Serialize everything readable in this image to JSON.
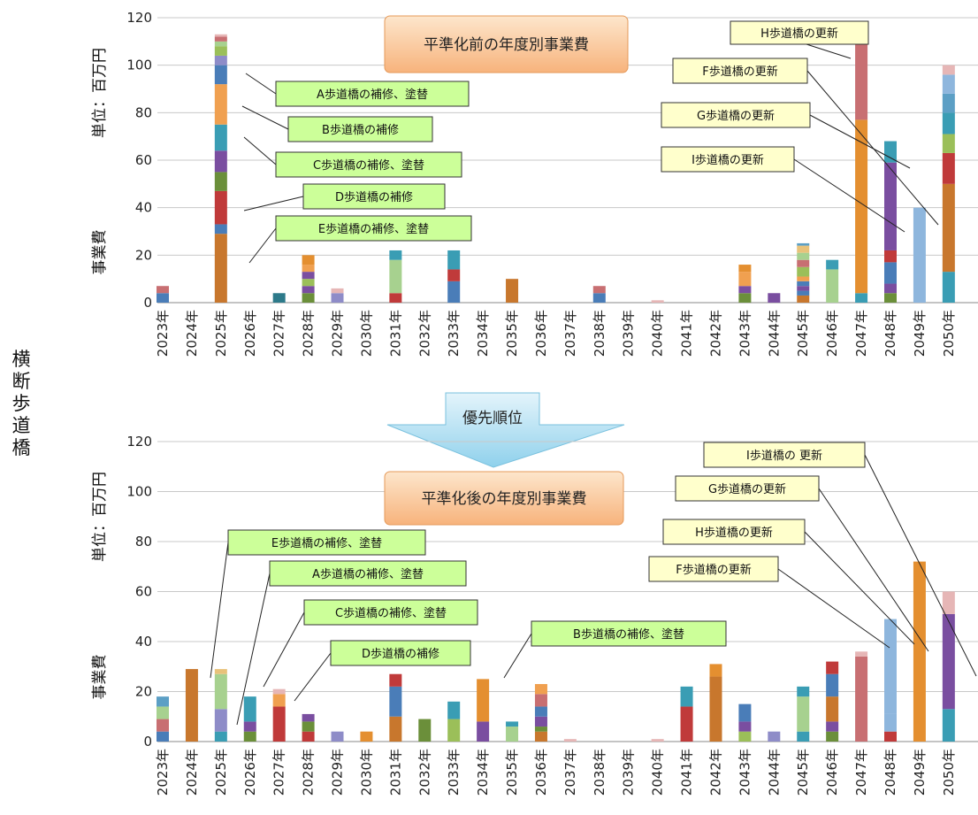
{
  "side_label": "横断歩道橋",
  "priority_arrow": "優先順位",
  "colors": {
    "A": "#8e8cc8",
    "B": "#f0a050",
    "C": "#3a9db4",
    "D": "#c03a3a",
    "E": "#c8772d",
    "F": "#e48f30",
    "G": "#8eb6dd",
    "H": "#c86f72",
    "I": "#7a4ea0",
    "c1": "#4a7db8",
    "c2": "#9bbf59",
    "c3": "#a7d18f",
    "c4": "#2d7a8a",
    "c5": "#e6b6b6",
    "c6": "#6b8f3a",
    "c7": "#e8c27a",
    "c8": "#5c9fc5"
  },
  "chart_data": [
    {
      "type": "bar",
      "stacked": true,
      "title": "平準化前の年度別事業費",
      "ylabel_top": "単位：百万円",
      "ylabel_bottom": "事業費",
      "ylim": [
        0,
        120
      ],
      "yticks": [
        0,
        20,
        40,
        60,
        80,
        100,
        120
      ],
      "grid": true,
      "categories": [
        "2023年",
        "2024年",
        "2025年",
        "2026年",
        "2027年",
        "2028年",
        "2029年",
        "2030年",
        "2031年",
        "2032年",
        "2033年",
        "2034年",
        "2035年",
        "2036年",
        "2037年",
        "2038年",
        "2039年",
        "2040年",
        "2041年",
        "2042年",
        "2043年",
        "2044年",
        "2045年",
        "2046年",
        "2047年",
        "2048年",
        "2049年",
        "2050年"
      ],
      "stacks": [
        [
          {
            "v": 4,
            "c": "c1"
          },
          {
            "v": 3,
            "c": "H"
          }
        ],
        [],
        [
          {
            "v": 29,
            "c": "E"
          },
          {
            "v": 4,
            "c": "c1"
          },
          {
            "v": 14,
            "c": "D"
          },
          {
            "v": 8,
            "c": "c6"
          },
          {
            "v": 9,
            "c": "I"
          },
          {
            "v": 11,
            "c": "C"
          },
          {
            "v": 17,
            "c": "B"
          },
          {
            "v": 8,
            "c": "c1"
          },
          {
            "v": 4,
            "c": "A"
          },
          {
            "v": 4,
            "c": "c2"
          },
          {
            "v": 2,
            "c": "c3"
          },
          {
            "v": 2,
            "c": "H"
          },
          {
            "v": 1,
            "c": "c5"
          }
        ],
        [],
        [
          {
            "v": 4,
            "c": "c4"
          }
        ],
        [
          {
            "v": 4,
            "c": "c6"
          },
          {
            "v": 3,
            "c": "I"
          },
          {
            "v": 3,
            "c": "c2"
          },
          {
            "v": 3,
            "c": "I"
          },
          {
            "v": 3,
            "c": "B"
          },
          {
            "v": 4,
            "c": "F"
          }
        ],
        [
          {
            "v": 4,
            "c": "A"
          },
          {
            "v": 2,
            "c": "c5"
          }
        ],
        [],
        [
          {
            "v": 4,
            "c": "D"
          },
          {
            "v": 14,
            "c": "c3"
          },
          {
            "v": 4,
            "c": "C"
          }
        ],
        [],
        [
          {
            "v": 9,
            "c": "c1"
          },
          {
            "v": 5,
            "c": "D"
          },
          {
            "v": 8,
            "c": "C"
          }
        ],
        [],
        [
          {
            "v": 10,
            "c": "E"
          }
        ],
        [],
        [],
        [
          {
            "v": 4,
            "c": "c1"
          },
          {
            "v": 3,
            "c": "H"
          }
        ],
        [],
        [
          {
            "v": 1,
            "c": "c5"
          }
        ],
        [],
        [],
        [
          {
            "v": 4,
            "c": "c6"
          },
          {
            "v": 3,
            "c": "I"
          },
          {
            "v": 6,
            "c": "B"
          },
          {
            "v": 3,
            "c": "F"
          }
        ],
        [
          {
            "v": 4,
            "c": "I"
          }
        ],
        [
          {
            "v": 3,
            "c": "E"
          },
          {
            "v": 2,
            "c": "c1"
          },
          {
            "v": 2,
            "c": "I"
          },
          {
            "v": 2,
            "c": "c1"
          },
          {
            "v": 2,
            "c": "B"
          },
          {
            "v": 4,
            "c": "c2"
          },
          {
            "v": 3,
            "c": "H"
          },
          {
            "v": 3,
            "c": "c3"
          },
          {
            "v": 3,
            "c": "c7"
          },
          {
            "v": 1,
            "c": "c8"
          }
        ],
        [
          {
            "v": 14,
            "c": "c3"
          },
          {
            "v": 4,
            "c": "C"
          }
        ],
        [
          {
            "v": 4,
            "c": "C"
          },
          {
            "v": 73,
            "c": "F"
          },
          {
            "v": 34,
            "c": "H"
          }
        ],
        [
          {
            "v": 4,
            "c": "c6"
          },
          {
            "v": 4,
            "c": "I"
          },
          {
            "v": 9,
            "c": "c1"
          },
          {
            "v": 5,
            "c": "D"
          },
          {
            "v": 37,
            "c": "I"
          },
          {
            "v": 9,
            "c": "C"
          }
        ],
        [
          {
            "v": 40,
            "c": "G"
          }
        ],
        [
          {
            "v": 13,
            "c": "C"
          },
          {
            "v": 37,
            "c": "E"
          },
          {
            "v": 13,
            "c": "D"
          },
          {
            "v": 8,
            "c": "c2"
          },
          {
            "v": 9,
            "c": "C"
          },
          {
            "v": 8,
            "c": "c8"
          },
          {
            "v": 8,
            "c": "G"
          },
          {
            "v": 4,
            "c": "c5"
          }
        ]
      ],
      "annotations": [
        {
          "text": "A歩道橋の補修、塗替"
        },
        {
          "text": "B歩道橋の補修"
        },
        {
          "text": "C歩道橋の補修、塗替"
        },
        {
          "text": "D歩道橋の補修"
        },
        {
          "text": "E歩道橋の補修、塗替"
        },
        {
          "text": "H歩道橋の更新"
        },
        {
          "text": "F歩道橋の更新"
        },
        {
          "text": "G歩道橋の更新"
        },
        {
          "text": "I歩道橋の更新"
        }
      ]
    },
    {
      "type": "bar",
      "stacked": true,
      "title": "平準化後の年度別事業費",
      "ylabel_top": "単位：百万円",
      "ylabel_bottom": "事業費",
      "ylim": [
        0,
        120
      ],
      "yticks": [
        0,
        20,
        40,
        60,
        80,
        100,
        120
      ],
      "grid": true,
      "categories": [
        "2023年",
        "2024年",
        "2025年",
        "2026年",
        "2027年",
        "2028年",
        "2029年",
        "2030年",
        "2031年",
        "2032年",
        "2033年",
        "2034年",
        "2035年",
        "2036年",
        "2037年",
        "2038年",
        "2039年",
        "2040年",
        "2041年",
        "2042年",
        "2043年",
        "2044年",
        "2045年",
        "2046年",
        "2047年",
        "2048年",
        "2049年",
        "2050年"
      ],
      "stacks": [
        [
          {
            "v": 4,
            "c": "c1"
          },
          {
            "v": 5,
            "c": "H"
          },
          {
            "v": 5,
            "c": "c3"
          },
          {
            "v": 4,
            "c": "c8"
          }
        ],
        [
          {
            "v": 29,
            "c": "E"
          }
        ],
        [
          {
            "v": 4,
            "c": "C"
          },
          {
            "v": 9,
            "c": "A"
          },
          {
            "v": 14,
            "c": "c3"
          },
          {
            "v": 2,
            "c": "c7"
          }
        ],
        [
          {
            "v": 4,
            "c": "c6"
          },
          {
            "v": 4,
            "c": "I"
          },
          {
            "v": 10,
            "c": "C"
          }
        ],
        [
          {
            "v": 14,
            "c": "D"
          },
          {
            "v": 5,
            "c": "B"
          },
          {
            "v": 2,
            "c": "c5"
          }
        ],
        [
          {
            "v": 4,
            "c": "D"
          },
          {
            "v": 4,
            "c": "c6"
          },
          {
            "v": 3,
            "c": "I"
          }
        ],
        [
          {
            "v": 4,
            "c": "A"
          }
        ],
        [
          {
            "v": 4,
            "c": "F"
          }
        ],
        [
          {
            "v": 10,
            "c": "E"
          },
          {
            "v": 12,
            "c": "c1"
          },
          {
            "v": 5,
            "c": "D"
          }
        ],
        [
          {
            "v": 9,
            "c": "c6"
          }
        ],
        [
          {
            "v": 9,
            "c": "c2"
          },
          {
            "v": 7,
            "c": "C"
          }
        ],
        [
          {
            "v": 8,
            "c": "I"
          },
          {
            "v": 17,
            "c": "F"
          }
        ],
        [
          {
            "v": 6,
            "c": "c3"
          },
          {
            "v": 2,
            "c": "C"
          }
        ],
        [
          {
            "v": 4,
            "c": "E"
          },
          {
            "v": 2,
            "c": "c6"
          },
          {
            "v": 4,
            "c": "I"
          },
          {
            "v": 4,
            "c": "c1"
          },
          {
            "v": 5,
            "c": "H"
          },
          {
            "v": 4,
            "c": "B"
          }
        ],
        [
          {
            "v": 1,
            "c": "c5"
          }
        ],
        [],
        [],
        [
          {
            "v": 1,
            "c": "c5"
          }
        ],
        [
          {
            "v": 14,
            "c": "D"
          },
          {
            "v": 8,
            "c": "C"
          }
        ],
        [
          {
            "v": 26,
            "c": "E"
          },
          {
            "v": 5,
            "c": "F"
          }
        ],
        [
          {
            "v": 4,
            "c": "c2"
          },
          {
            "v": 4,
            "c": "I"
          },
          {
            "v": 7,
            "c": "c1"
          }
        ],
        [
          {
            "v": 4,
            "c": "A"
          }
        ],
        [
          {
            "v": 4,
            "c": "C"
          },
          {
            "v": 14,
            "c": "c3"
          },
          {
            "v": 4,
            "c": "C"
          }
        ],
        [
          {
            "v": 4,
            "c": "c6"
          },
          {
            "v": 4,
            "c": "I"
          },
          {
            "v": 10,
            "c": "E"
          },
          {
            "v": 9,
            "c": "c1"
          },
          {
            "v": 5,
            "c": "D"
          }
        ],
        [
          {
            "v": 34,
            "c": "H"
          },
          {
            "v": 2,
            "c": "c5"
          }
        ],
        [
          {
            "v": 4,
            "c": "D"
          },
          {
            "v": 7,
            "c": "G"
          },
          {
            "v": 38,
            "c": "G"
          }
        ],
        [
          {
            "v": 72,
            "c": "F"
          }
        ],
        [
          {
            "v": 13,
            "c": "C"
          },
          {
            "v": 38,
            "c": "I"
          },
          {
            "v": 9,
            "c": "c5"
          }
        ]
      ],
      "annotations": [
        {
          "text": "E歩道橋の補修、塗替"
        },
        {
          "text": "A歩道橋の補修、塗替"
        },
        {
          "text": "C歩道橋の補修、塗替"
        },
        {
          "text": "D歩道橋の補修"
        },
        {
          "text": "B歩道橋の補修、塗替"
        },
        {
          "text": "I歩道橋の 更新"
        },
        {
          "text": "G歩道橋の更新"
        },
        {
          "text": "H歩道橋の更新"
        },
        {
          "text": "F歩道橋の更新"
        }
      ]
    }
  ]
}
